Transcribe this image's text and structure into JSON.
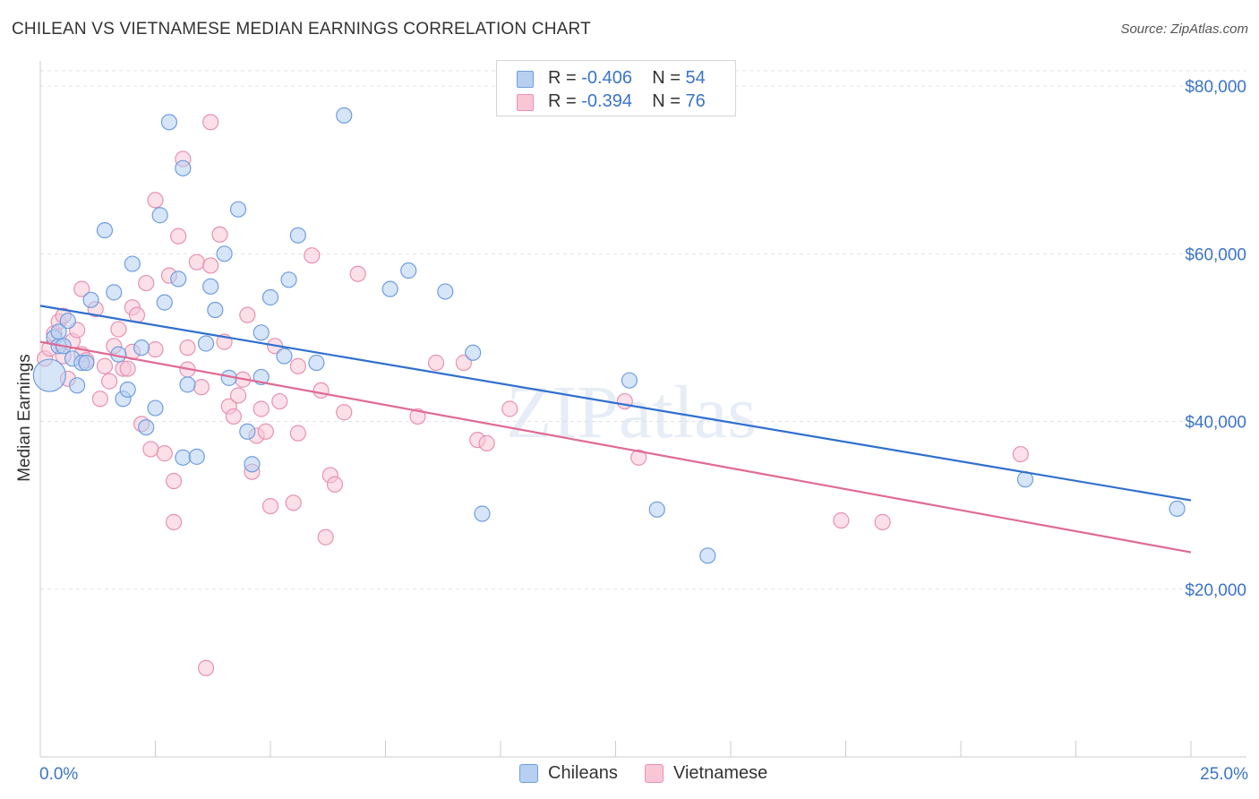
{
  "title": "CHILEAN VS VIETNAMESE MEDIAN EARNINGS CORRELATION CHART",
  "source": "Source: ZipAtlas.com",
  "watermark": "ZIPatlas",
  "legend_top": [
    {
      "r_label": "R =",
      "r_value": "-0.406",
      "n_label": "N =",
      "n_value": "54"
    },
    {
      "r_label": "R =",
      "r_value": "-0.394",
      "n_label": "N =",
      "n_value": "76"
    }
  ],
  "legend_bottom": [
    {
      "label": "Chileans"
    },
    {
      "label": "Vietnamese"
    }
  ],
  "colors": {
    "chileans_fill": "#b7d0f2",
    "chileans_stroke": "#6f9ee0",
    "chileans_line": "#2f6fcf",
    "vietnamese_fill": "#f8c6d5",
    "vietnamese_stroke": "#e891b0",
    "vietnamese_line": "#e06a93",
    "tick_label": "#3b74c9",
    "grid": "#e3e3e3"
  },
  "chart_data": {
    "type": "scatter",
    "title": "CHILEAN VS VIETNAMESE MEDIAN EARNINGS CORRELATION CHART",
    "xlabel": "",
    "ylabel": "Median Earnings",
    "xlim": [
      0,
      25
    ],
    "ylim": [
      0,
      83000
    ],
    "x_tick_labels": [
      "0.0%",
      "25.0%"
    ],
    "y_ticks": [
      20000,
      40000,
      60000,
      80000
    ],
    "y_tick_labels": [
      "$20,000",
      "$40,000",
      "$60,000",
      "$80,000"
    ],
    "grid": true,
    "legend_position": "top-center",
    "series": [
      {
        "name": "Chileans",
        "trend": {
          "x": [
            0,
            25
          ],
          "y": [
            53800,
            30600
          ]
        },
        "points": [
          [
            0.2,
            45500
          ],
          [
            0.3,
            50000
          ],
          [
            0.4,
            49000
          ],
          [
            0.5,
            49000
          ],
          [
            0.6,
            52000
          ],
          [
            0.7,
            47500
          ],
          [
            0.8,
            44300
          ],
          [
            0.9,
            47000
          ],
          [
            1.0,
            47000
          ],
          [
            1.1,
            54500
          ],
          [
            1.4,
            62800
          ],
          [
            1.6,
            55400
          ],
          [
            1.7,
            48000
          ],
          [
            1.8,
            42700
          ],
          [
            1.9,
            43800
          ],
          [
            2.0,
            58800
          ],
          [
            2.2,
            48800
          ],
          [
            2.3,
            39300
          ],
          [
            2.5,
            41600
          ],
          [
            2.6,
            64600
          ],
          [
            2.7,
            54200
          ],
          [
            2.8,
            75700
          ],
          [
            3.0,
            57000
          ],
          [
            3.1,
            35700
          ],
          [
            3.1,
            70200
          ],
          [
            3.2,
            44400
          ],
          [
            3.4,
            35800
          ],
          [
            3.6,
            49300
          ],
          [
            3.7,
            56100
          ],
          [
            3.8,
            53300
          ],
          [
            4.0,
            60000
          ],
          [
            4.1,
            45200
          ],
          [
            4.3,
            65300
          ],
          [
            4.5,
            38800
          ],
          [
            4.6,
            34900
          ],
          [
            4.8,
            50600
          ],
          [
            4.8,
            45300
          ],
          [
            5.0,
            54800
          ],
          [
            5.3,
            47800
          ],
          [
            5.4,
            56900
          ],
          [
            5.6,
            62200
          ],
          [
            6.0,
            47000
          ],
          [
            6.6,
            76500
          ],
          [
            7.6,
            55800
          ],
          [
            8.0,
            58000
          ],
          [
            8.8,
            55500
          ],
          [
            9.4,
            48200
          ],
          [
            9.6,
            29000
          ],
          [
            12.8,
            44900
          ],
          [
            13.4,
            29500
          ],
          [
            14.5,
            24000
          ],
          [
            21.4,
            33100
          ],
          [
            24.7,
            29600
          ],
          [
            0.4,
            50700
          ]
        ]
      },
      {
        "name": "Vietnamese",
        "trend": {
          "x": [
            0,
            25
          ],
          "y": [
            49500,
            24400
          ]
        },
        "points": [
          [
            0.1,
            47500
          ],
          [
            0.2,
            48700
          ],
          [
            0.3,
            50500
          ],
          [
            0.4,
            51900
          ],
          [
            0.5,
            52600
          ],
          [
            0.5,
            47800
          ],
          [
            0.6,
            45100
          ],
          [
            0.7,
            49600
          ],
          [
            0.8,
            50900
          ],
          [
            0.9,
            48000
          ],
          [
            0.9,
            55800
          ],
          [
            1.0,
            47300
          ],
          [
            1.2,
            53400
          ],
          [
            1.3,
            42700
          ],
          [
            1.4,
            46600
          ],
          [
            1.5,
            44800
          ],
          [
            1.6,
            49000
          ],
          [
            1.7,
            51000
          ],
          [
            1.8,
            46300
          ],
          [
            1.9,
            46300
          ],
          [
            2.0,
            48300
          ],
          [
            2.0,
            53600
          ],
          [
            2.1,
            52700
          ],
          [
            2.2,
            39700
          ],
          [
            2.3,
            56500
          ],
          [
            2.4,
            36700
          ],
          [
            2.5,
            48600
          ],
          [
            2.5,
            66400
          ],
          [
            2.7,
            36200
          ],
          [
            2.8,
            57400
          ],
          [
            2.9,
            28000
          ],
          [
            2.9,
            32900
          ],
          [
            3.0,
            62100
          ],
          [
            3.1,
            71300
          ],
          [
            3.2,
            46200
          ],
          [
            3.2,
            48800
          ],
          [
            3.4,
            59000
          ],
          [
            3.5,
            44100
          ],
          [
            3.6,
            10600
          ],
          [
            3.7,
            75700
          ],
          [
            3.7,
            58600
          ],
          [
            3.9,
            62300
          ],
          [
            4.0,
            49500
          ],
          [
            4.1,
            41800
          ],
          [
            4.2,
            40600
          ],
          [
            4.3,
            43100
          ],
          [
            4.4,
            45000
          ],
          [
            4.5,
            52700
          ],
          [
            4.6,
            34000
          ],
          [
            4.7,
            38300
          ],
          [
            4.8,
            41500
          ],
          [
            4.9,
            38800
          ],
          [
            5.0,
            29900
          ],
          [
            5.1,
            49000
          ],
          [
            5.2,
            42400
          ],
          [
            5.5,
            30300
          ],
          [
            5.6,
            38600
          ],
          [
            5.6,
            46600
          ],
          [
            5.9,
            59800
          ],
          [
            6.1,
            43700
          ],
          [
            6.2,
            26200
          ],
          [
            6.3,
            33600
          ],
          [
            6.4,
            32500
          ],
          [
            6.6,
            41100
          ],
          [
            6.9,
            57600
          ],
          [
            8.2,
            40600
          ],
          [
            8.6,
            47000
          ],
          [
            9.2,
            47000
          ],
          [
            9.5,
            37800
          ],
          [
            9.7,
            37400
          ],
          [
            10.2,
            41500
          ],
          [
            12.7,
            42400
          ],
          [
            13.0,
            35700
          ],
          [
            17.4,
            28200
          ],
          [
            18.3,
            28000
          ],
          [
            21.3,
            36100
          ]
        ]
      }
    ]
  }
}
